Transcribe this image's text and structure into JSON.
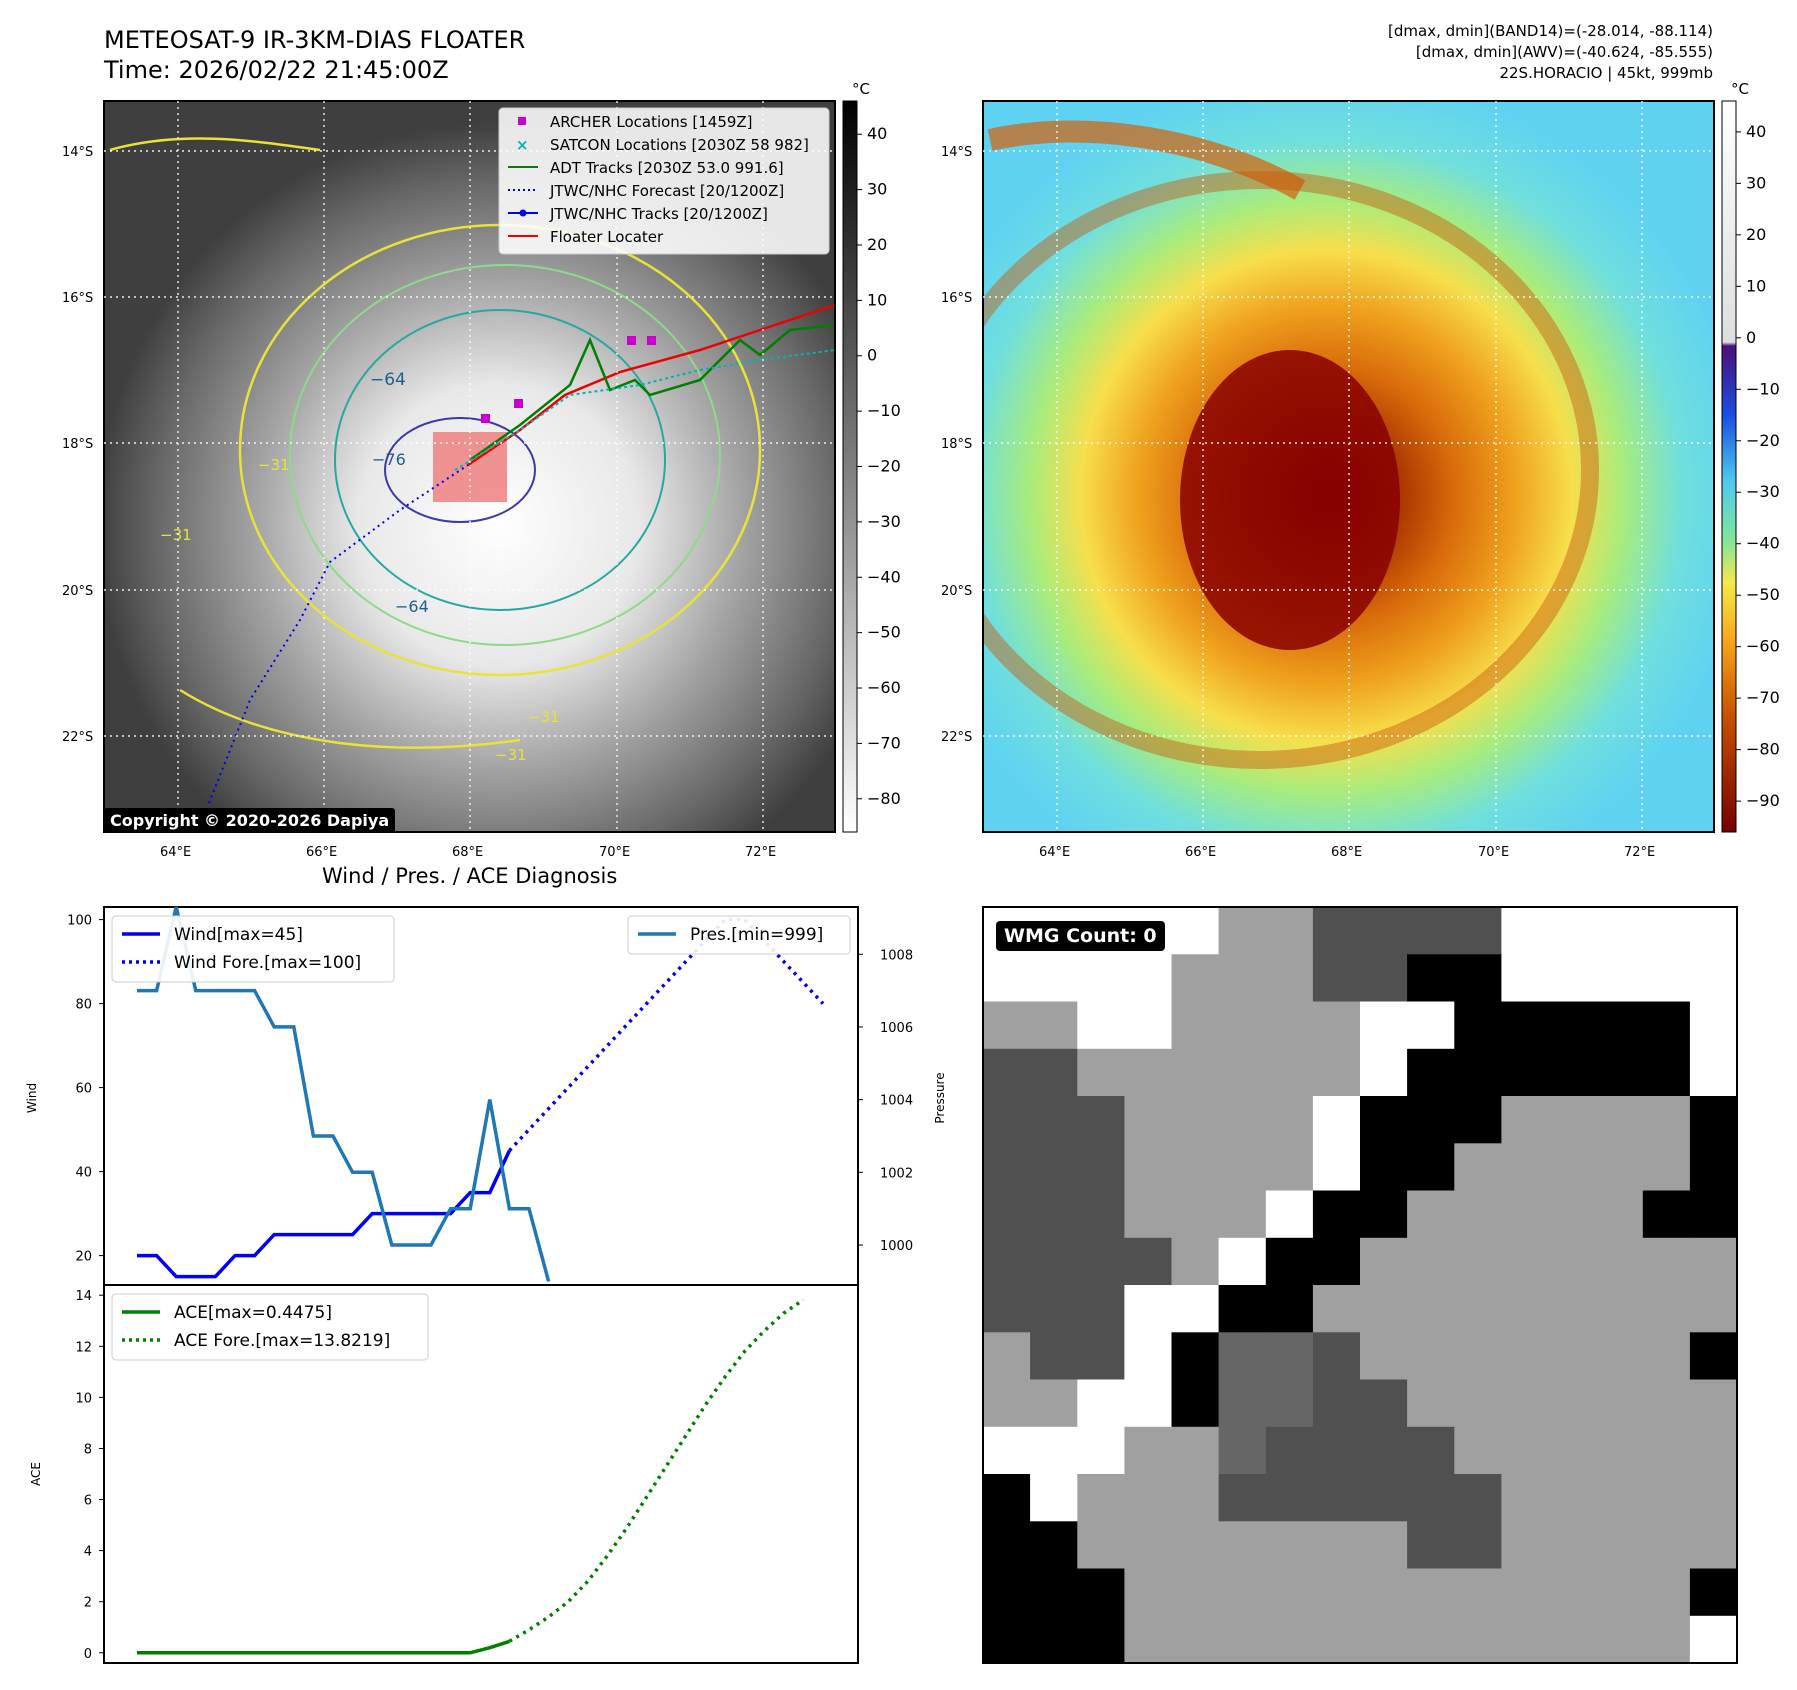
{
  "header": {
    "title_line1": "METEOSAT-9 IR-3KM-DIAS FLOATER",
    "title_line2": "Time: 2026/02/22 21:45:00Z",
    "info_line1": "[dmax, dmin](BAND14)=(-28.014, -88.114)",
    "info_line2": "[dmax, dmin](AWV)=(-40.624, -85.555)",
    "info_line3": "22S.HORACIO | 45kt, 999mb"
  },
  "colors": {
    "wind": "#0000ee",
    "pressure": "#1f77b4",
    "ace": "#007f00",
    "archer": "#cc00cc",
    "satcon": "#00b4b4",
    "adt": "#007f00",
    "floater": "#ee0000"
  },
  "map": {
    "lon_ticks": [
      "64°E",
      "66°E",
      "68°E",
      "70°E",
      "72°E"
    ],
    "lat_ticks": [
      "14°S",
      "16°S",
      "18°S",
      "20°S",
      "22°S"
    ],
    "cbar_unit": "°C",
    "gray_cbar_ticks": [
      "40",
      "30",
      "20",
      "10",
      "0",
      "−10",
      "−20",
      "−30",
      "−40",
      "−50",
      "−60",
      "−70",
      "−80"
    ],
    "color_cbar_ticks": [
      "40",
      "30",
      "20",
      "10",
      "0",
      "−10",
      "−20",
      "−30",
      "−40",
      "−50",
      "−60",
      "−70",
      "−80",
      "−90"
    ],
    "contour_labels": [
      "−64",
      "−76",
      "−31",
      "−31",
      "−64",
      "−31",
      "−31"
    ],
    "copyright": "Copyright © 2020-2026 Dapiya",
    "legend": [
      {
        "label": "ARCHER Locations [1459Z]",
        "marker": "square",
        "color": "#cc00cc"
      },
      {
        "label": "SATCON Locations [2030Z 58 982]",
        "marker": "x",
        "color": "#00b4b4"
      },
      {
        "label": "ADT Tracks [2030Z 53.0 991.6]",
        "marker": "line",
        "color": "#007f00"
      },
      {
        "label": "JTWC/NHC Forecast [20/1200Z]",
        "marker": "dotted",
        "color": "#0000ee"
      },
      {
        "label": "JTWC/NHC Tracks [20/1200Z]",
        "marker": "line-dot",
        "color": "#0000ee"
      },
      {
        "label": "Floater Locater",
        "marker": "line",
        "color": "#ee0000"
      }
    ]
  },
  "wmg": {
    "label": "WMG Count: 0"
  },
  "chart_data": [
    {
      "type": "line",
      "title": "Wind / Pres. / ACE Diagnosis",
      "ylabel": "Wind",
      "ylabel2": "Pressure",
      "ylim": [
        13,
        103
      ],
      "ylim2": [
        998.9,
        1009.3
      ],
      "yticks": [
        20,
        40,
        60,
        80,
        100
      ],
      "yticks2": [
        1000,
        1002,
        1004,
        1006,
        1008
      ],
      "series": [
        {
          "name": "Wind[max=45]",
          "axis": "left",
          "style": "solid",
          "color": "#0000ee",
          "values": [
            20,
            20,
            15,
            15,
            15,
            20,
            20,
            25,
            25,
            25,
            25,
            25,
            30,
            30,
            30,
            30,
            30,
            35,
            35,
            45
          ]
        },
        {
          "name": "Wind Fore.[max=100]",
          "axis": "left",
          "style": "dotted",
          "color": "#0000ee",
          "values": [
            45,
            50,
            55,
            60,
            65,
            70,
            75,
            80,
            85,
            90,
            95,
            100,
            100,
            95,
            90,
            85,
            80
          ],
          "offset": 19
        },
        {
          "name": "Pres.[min=999]",
          "axis": "right",
          "style": "solid",
          "color": "#1f77b4",
          "values": [
            1007.0,
            1007.0,
            1009.3,
            1007.0,
            1007.0,
            1007.0,
            1007.0,
            1006.0,
            1006.0,
            1003.0,
            1003.0,
            1002.0,
            1002.0,
            1000.0,
            1000.0,
            1000.0,
            1001.0,
            1001.0,
            1004.0,
            1001.0,
            1001.0,
            999.0
          ]
        }
      ]
    },
    {
      "type": "line",
      "ylabel": "ACE",
      "ylim": [
        -0.4,
        14.4
      ],
      "yticks": [
        0,
        2,
        4,
        6,
        8,
        10,
        12,
        14
      ],
      "series": [
        {
          "name": "ACE[max=0.4475]",
          "style": "solid",
          "color": "#007f00",
          "values": [
            0,
            0,
            0,
            0,
            0,
            0,
            0,
            0,
            0,
            0,
            0,
            0,
            0,
            0,
            0,
            0,
            0,
            0,
            0.2,
            0.4475
          ]
        },
        {
          "name": "ACE Fore.[max=13.8219]",
          "style": "dotted",
          "color": "#007f00",
          "values": [
            0.45,
            0.9,
            1.4,
            2.0,
            2.8,
            3.8,
            4.9,
            6.1,
            7.3,
            8.5,
            9.7,
            10.8,
            11.8,
            12.6,
            13.3,
            13.8219
          ],
          "offset": 19
        }
      ]
    }
  ]
}
